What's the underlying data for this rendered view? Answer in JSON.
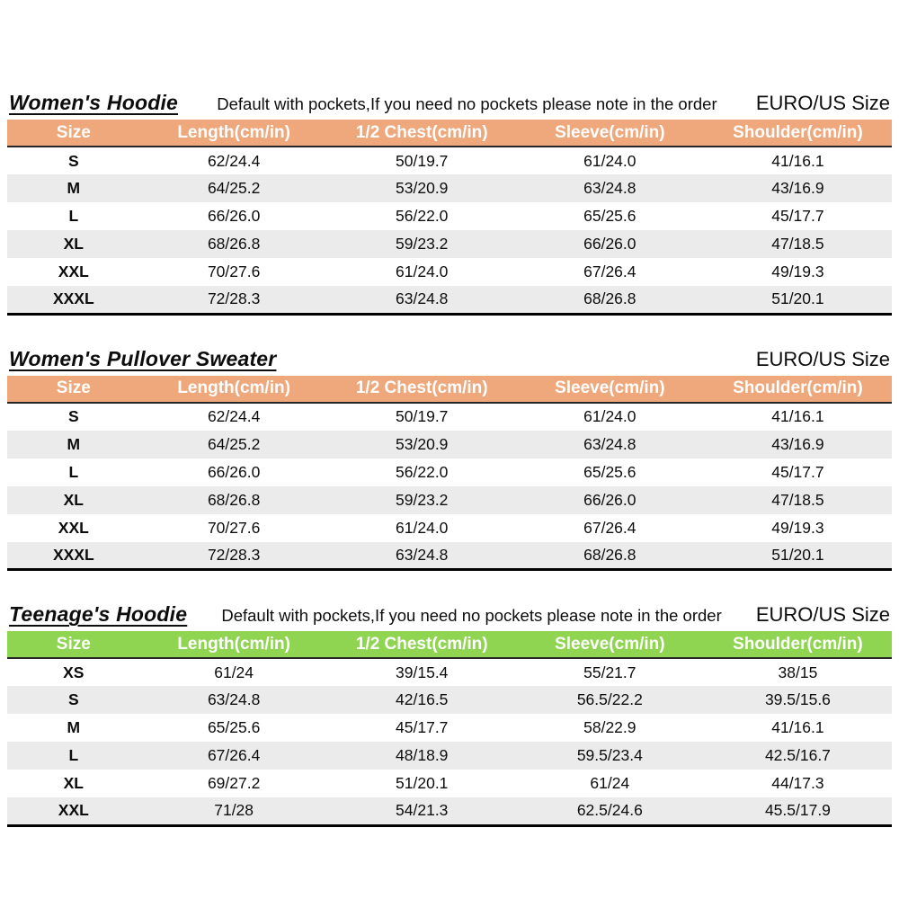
{
  "page": {
    "accent_orange": "#efa77c",
    "accent_green": "#90d551",
    "row_alt_color": "#ebebeb"
  },
  "columns": [
    "Size",
    "Length(cm/in)",
    "1/2 Chest(cm/in)",
    "Sleeve(cm/in)",
    "Shoulder(cm/in)"
  ],
  "tables": [
    {
      "title": "Women's Hoodie",
      "note": "Default with pockets,If you need no pockets please note in the order",
      "standard": "EURO/US Size",
      "header_color": "#efa77c",
      "rows": [
        [
          "S",
          "62/24.4",
          "50/19.7",
          "61/24.0",
          "41/16.1"
        ],
        [
          "M",
          "64/25.2",
          "53/20.9",
          "63/24.8",
          "43/16.9"
        ],
        [
          "L",
          "66/26.0",
          "56/22.0",
          "65/25.6",
          "45/17.7"
        ],
        [
          "XL",
          "68/26.8",
          "59/23.2",
          "66/26.0",
          "47/18.5"
        ],
        [
          "XXL",
          "70/27.6",
          "61/24.0",
          "67/26.4",
          "49/19.3"
        ],
        [
          "XXXL",
          "72/28.3",
          "63/24.8",
          "68/26.8",
          "51/20.1"
        ]
      ]
    },
    {
      "title": "Women's Pullover Sweater",
      "note": "",
      "standard": "EURO/US Size",
      "header_color": "#efa77c",
      "rows": [
        [
          "S",
          "62/24.4",
          "50/19.7",
          "61/24.0",
          "41/16.1"
        ],
        [
          "M",
          "64/25.2",
          "53/20.9",
          "63/24.8",
          "43/16.9"
        ],
        [
          "L",
          "66/26.0",
          "56/22.0",
          "65/25.6",
          "45/17.7"
        ],
        [
          "XL",
          "68/26.8",
          "59/23.2",
          "66/26.0",
          "47/18.5"
        ],
        [
          "XXL",
          "70/27.6",
          "61/24.0",
          "67/26.4",
          "49/19.3"
        ],
        [
          "XXXL",
          "72/28.3",
          "63/24.8",
          "68/26.8",
          "51/20.1"
        ]
      ]
    },
    {
      "title": "Teenage's Hoodie",
      "note": "Default with pockets,If you need no pockets please note in the order",
      "standard": "EURO/US Size",
      "header_color": "#90d551",
      "rows": [
        [
          "XS",
          "61/24",
          "39/15.4",
          "55/21.7",
          "38/15"
        ],
        [
          "S",
          "63/24.8",
          "42/16.5",
          "56.5/22.2",
          "39.5/15.6"
        ],
        [
          "M",
          "65/25.6",
          "45/17.7",
          "58/22.9",
          "41/16.1"
        ],
        [
          "L",
          "67/26.4",
          "48/18.9",
          "59.5/23.4",
          "42.5/16.7"
        ],
        [
          "XL",
          "69/27.2",
          "51/20.1",
          "61/24",
          "44/17.3"
        ],
        [
          "XXL",
          "71/28",
          "54/21.3",
          "62.5/24.6",
          "45.5/17.9"
        ]
      ]
    }
  ]
}
